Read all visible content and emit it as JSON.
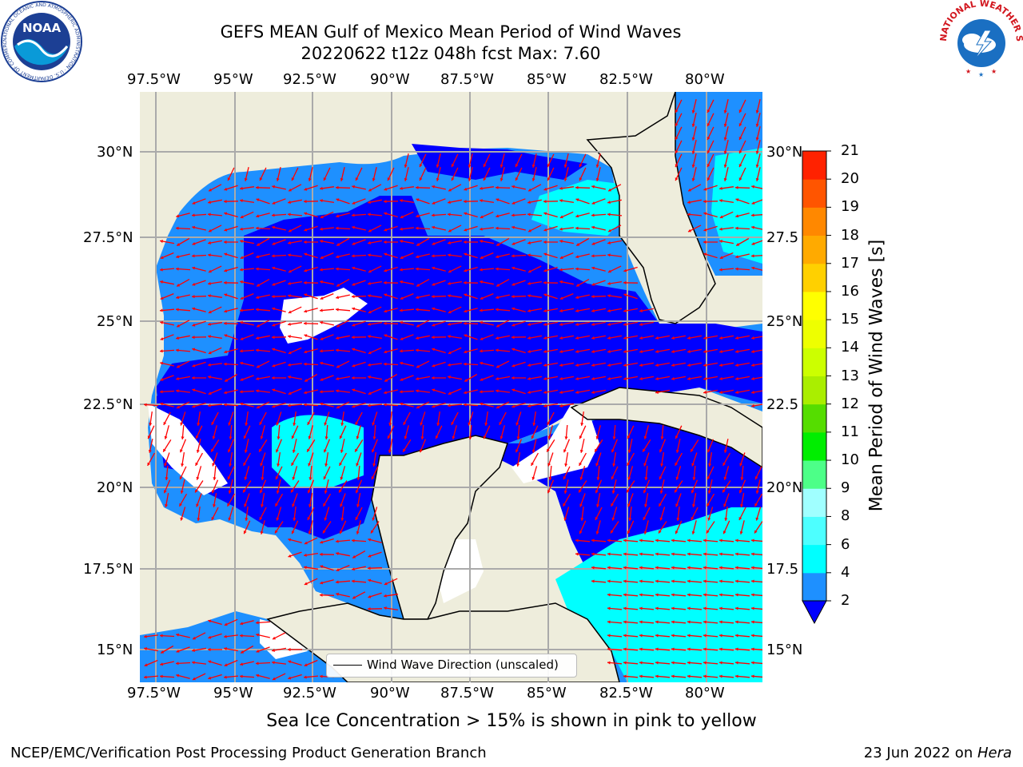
{
  "title": {
    "line1": "GEFS MEAN Gulf of Mexico Mean Period of Wind Waves",
    "line2": "20220622 t12z 048h fcst   Max: 7.60"
  },
  "map": {
    "lon_labels": [
      "97.5°W",
      "95°W",
      "92.5°W",
      "90°W",
      "87.5°W",
      "85°W",
      "82.5°W",
      "80°W"
    ],
    "lat_labels_left": [
      "30°N",
      "27.5°N",
      "25°N",
      "22.5°N",
      "20°N",
      "17.5°N",
      "15°N"
    ],
    "lat_labels_right": [
      "30°N",
      "27.5",
      "25°N",
      "22.5",
      "20°N",
      "17.5",
      "15°N"
    ],
    "legend": "Wind Wave Direction (unscaled)",
    "colors": {
      "land": "#eeeddc",
      "nodata": "#ffffff",
      "band_2_4": "#0000ff",
      "band_4_6": "#1e90ff",
      "band_6_8": "#00ffff",
      "arrow": "#ff0000"
    }
  },
  "colorbar": {
    "label": "Mean Period of Wind Waves [s]",
    "ticks": [
      "2",
      "4",
      "6",
      "8",
      "9",
      "10",
      "11",
      "12",
      "13",
      "14",
      "15",
      "16",
      "17",
      "18",
      "19",
      "20",
      "21"
    ],
    "colors": [
      "#0000ff",
      "#1e90ff",
      "#00ffff",
      "#4dffff",
      "#a0ffff",
      "#4dff88",
      "#00ee00",
      "#55dd00",
      "#aaee00",
      "#ccff00",
      "#eeff00",
      "#ffff00",
      "#ffd000",
      "#ffaa00",
      "#ff8800",
      "#ff5500",
      "#ff2200",
      "#ff0000"
    ]
  },
  "caption": "Sea Ice Concentration > 15% is shown in pink to yellow",
  "footer": {
    "left": "NCEP/EMC/Verification Post Processing Product Generation Branch",
    "date": "23 Jun 2022 on ",
    "machine": "Hera"
  },
  "logos": {
    "noaa": "NOAA",
    "noaa_ring": "NATIONAL OCEANIC AND ATMOSPHERIC ADMINISTRATION · U.S. DEPARTMENT OF COMMERCE",
    "nws_ring": "NATIONAL WEATHER SERVICE"
  }
}
